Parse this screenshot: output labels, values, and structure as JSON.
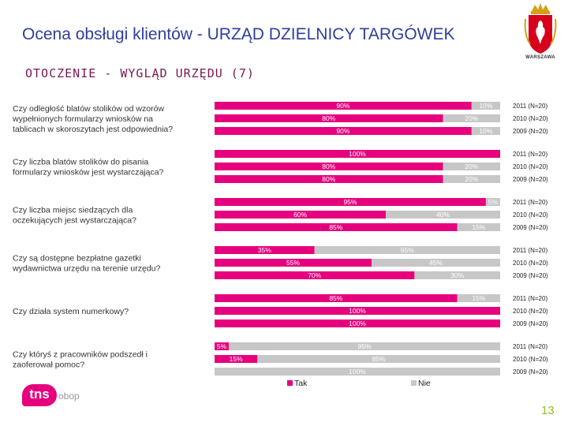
{
  "header": {
    "title": "Ocena obsługi klientów - URZĄD DZIELNICY TARGÓWEK",
    "subtitle": "OTOCZENIE - WYGLĄD URZĘDU (7)",
    "logo_text": "WARSZAWA"
  },
  "footer": {
    "brand": "tns",
    "brand_sub": "obop",
    "page_number": "13"
  },
  "colors": {
    "tak": "#e6007e",
    "nie": "#c7c7c7",
    "text": "#333333",
    "title": "#2f3f9a",
    "page": "#94c11f"
  },
  "chart_data": {
    "type": "bar",
    "orientation": "horizontal-stacked-100",
    "legend": [
      "Tak",
      "Nie"
    ],
    "legend_position": "bottom",
    "years": [
      "2011 (N=20)",
      "2010 (N=20)",
      "2009 (N=20)"
    ],
    "questions": [
      {
        "label": [
          "Czy odległość blatów  stolików od wzorów",
          "wypełnionych formularzy  wniosków na",
          "tablicach  w skoroszytach jest odpowiednia?"
        ],
        "tak": [
          90,
          80,
          90
        ],
        "nie": [
          10,
          20,
          10
        ]
      },
      {
        "label": [
          "Czy liczba blatów  stolików do pisania",
          "formularzy  wniosków jest wystarczająca?"
        ],
        "tak": [
          100,
          80,
          80
        ],
        "nie": [
          0,
          20,
          20
        ]
      },
      {
        "label": [
          "Czy liczba miejsc siedzących dla",
          "oczekujących jest wystarczająca?"
        ],
        "tak": [
          95,
          60,
          85
        ],
        "nie": [
          5,
          40,
          15
        ]
      },
      {
        "label": [
          "Czy są dostępne bezpłatne gazetki",
          "wydawnictwa urzędu na terenie urzędu?"
        ],
        "tak": [
          35,
          55,
          70
        ],
        "nie": [
          65,
          45,
          30
        ]
      },
      {
        "label": [
          "Czy działa system numerkowy?"
        ],
        "tak": [
          85,
          100,
          100
        ],
        "nie": [
          15,
          0,
          0
        ]
      },
      {
        "label": [
          "Czy któryś z pracowników podszedł i",
          "zaoferował pomoc?"
        ],
        "tak": [
          5,
          15,
          0
        ],
        "nie": [
          95,
          85,
          100
        ]
      }
    ]
  }
}
